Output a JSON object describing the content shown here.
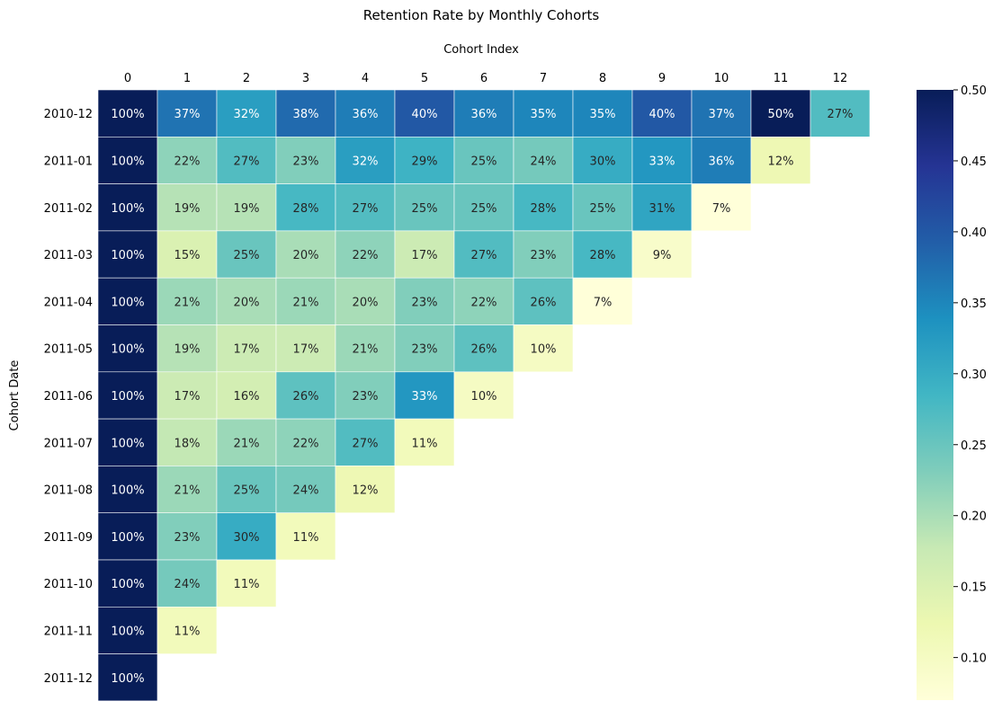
{
  "chart_data": {
    "type": "heatmap",
    "title": "Retention Rate by Monthly Cohorts",
    "xlabel": "Cohort Index",
    "ylabel": "Cohort Date",
    "x_categories": [
      "0",
      "1",
      "2",
      "3",
      "4",
      "5",
      "6",
      "7",
      "8",
      "9",
      "10",
      "11",
      "12"
    ],
    "y_categories": [
      "2010-12",
      "2011-01",
      "2011-02",
      "2011-03",
      "2011-04",
      "2011-05",
      "2011-06",
      "2011-07",
      "2011-08",
      "2011-09",
      "2011-10",
      "2011-11",
      "2011-12"
    ],
    "values": [
      [
        1.0,
        0.37,
        0.32,
        0.38,
        0.36,
        0.4,
        0.36,
        0.35,
        0.35,
        0.4,
        0.37,
        0.5,
        0.27
      ],
      [
        1.0,
        0.22,
        0.27,
        0.23,
        0.32,
        0.29,
        0.25,
        0.24,
        0.3,
        0.33,
        0.36,
        0.12
      ],
      [
        1.0,
        0.19,
        0.19,
        0.28,
        0.27,
        0.25,
        0.25,
        0.28,
        0.25,
        0.31,
        0.07
      ],
      [
        1.0,
        0.15,
        0.25,
        0.2,
        0.22,
        0.17,
        0.27,
        0.23,
        0.28,
        0.09
      ],
      [
        1.0,
        0.21,
        0.2,
        0.21,
        0.2,
        0.23,
        0.22,
        0.26,
        0.07
      ],
      [
        1.0,
        0.19,
        0.17,
        0.17,
        0.21,
        0.23,
        0.26,
        0.1
      ],
      [
        1.0,
        0.17,
        0.16,
        0.26,
        0.23,
        0.33,
        0.1
      ],
      [
        1.0,
        0.18,
        0.21,
        0.22,
        0.27,
        0.11
      ],
      [
        1.0,
        0.21,
        0.25,
        0.24,
        0.12
      ],
      [
        1.0,
        0.23,
        0.3,
        0.11
      ],
      [
        1.0,
        0.24,
        0.11
      ],
      [
        1.0,
        0.11
      ],
      [
        1.0
      ]
    ],
    "annotations": [
      [
        "100%",
        "37%",
        "32%",
        "38%",
        "36%",
        "40%",
        "36%",
        "35%",
        "35%",
        "40%",
        "37%",
        "50%",
        "27%"
      ],
      [
        "100%",
        "22%",
        "27%",
        "23%",
        "32%",
        "29%",
        "25%",
        "24%",
        "30%",
        "33%",
        "36%",
        "12%"
      ],
      [
        "100%",
        "19%",
        "19%",
        "28%",
        "27%",
        "25%",
        "25%",
        "28%",
        "25%",
        "31%",
        "7%"
      ],
      [
        "100%",
        "15%",
        "25%",
        "20%",
        "22%",
        "17%",
        "27%",
        "23%",
        "28%",
        "9%"
      ],
      [
        "100%",
        "21%",
        "20%",
        "21%",
        "20%",
        "23%",
        "22%",
        "26%",
        "7%"
      ],
      [
        "100%",
        "19%",
        "17%",
        "17%",
        "21%",
        "23%",
        "26%",
        "10%"
      ],
      [
        "100%",
        "17%",
        "16%",
        "26%",
        "23%",
        "33%",
        "10%"
      ],
      [
        "100%",
        "18%",
        "21%",
        "22%",
        "27%",
        "11%"
      ],
      [
        "100%",
        "21%",
        "25%",
        "24%",
        "12%"
      ],
      [
        "100%",
        "23%",
        "30%",
        "11%"
      ],
      [
        "100%",
        "24%",
        "11%"
      ],
      [
        "100%",
        "11%"
      ],
      [
        "100%"
      ]
    ],
    "color_scale": {
      "colormap": "YlGnBu",
      "vmin": 0.07,
      "vmax": 0.5,
      "tick_values": [
        0.1,
        0.15,
        0.2,
        0.25,
        0.3,
        0.35,
        0.4,
        0.45,
        0.5
      ],
      "tick_labels": [
        "0.10",
        "0.15",
        "0.20",
        "0.25",
        "0.30",
        "0.35",
        "0.40",
        "0.45",
        "0.50"
      ],
      "stops": [
        "#ffffd9",
        "#edf8b1",
        "#c7e9b4",
        "#7fcdbb",
        "#41b6c4",
        "#1d91c0",
        "#225ea8",
        "#253494",
        "#081d58"
      ]
    },
    "x_axis_position": "top",
    "grid": false,
    "legend": "colorbar-right"
  }
}
